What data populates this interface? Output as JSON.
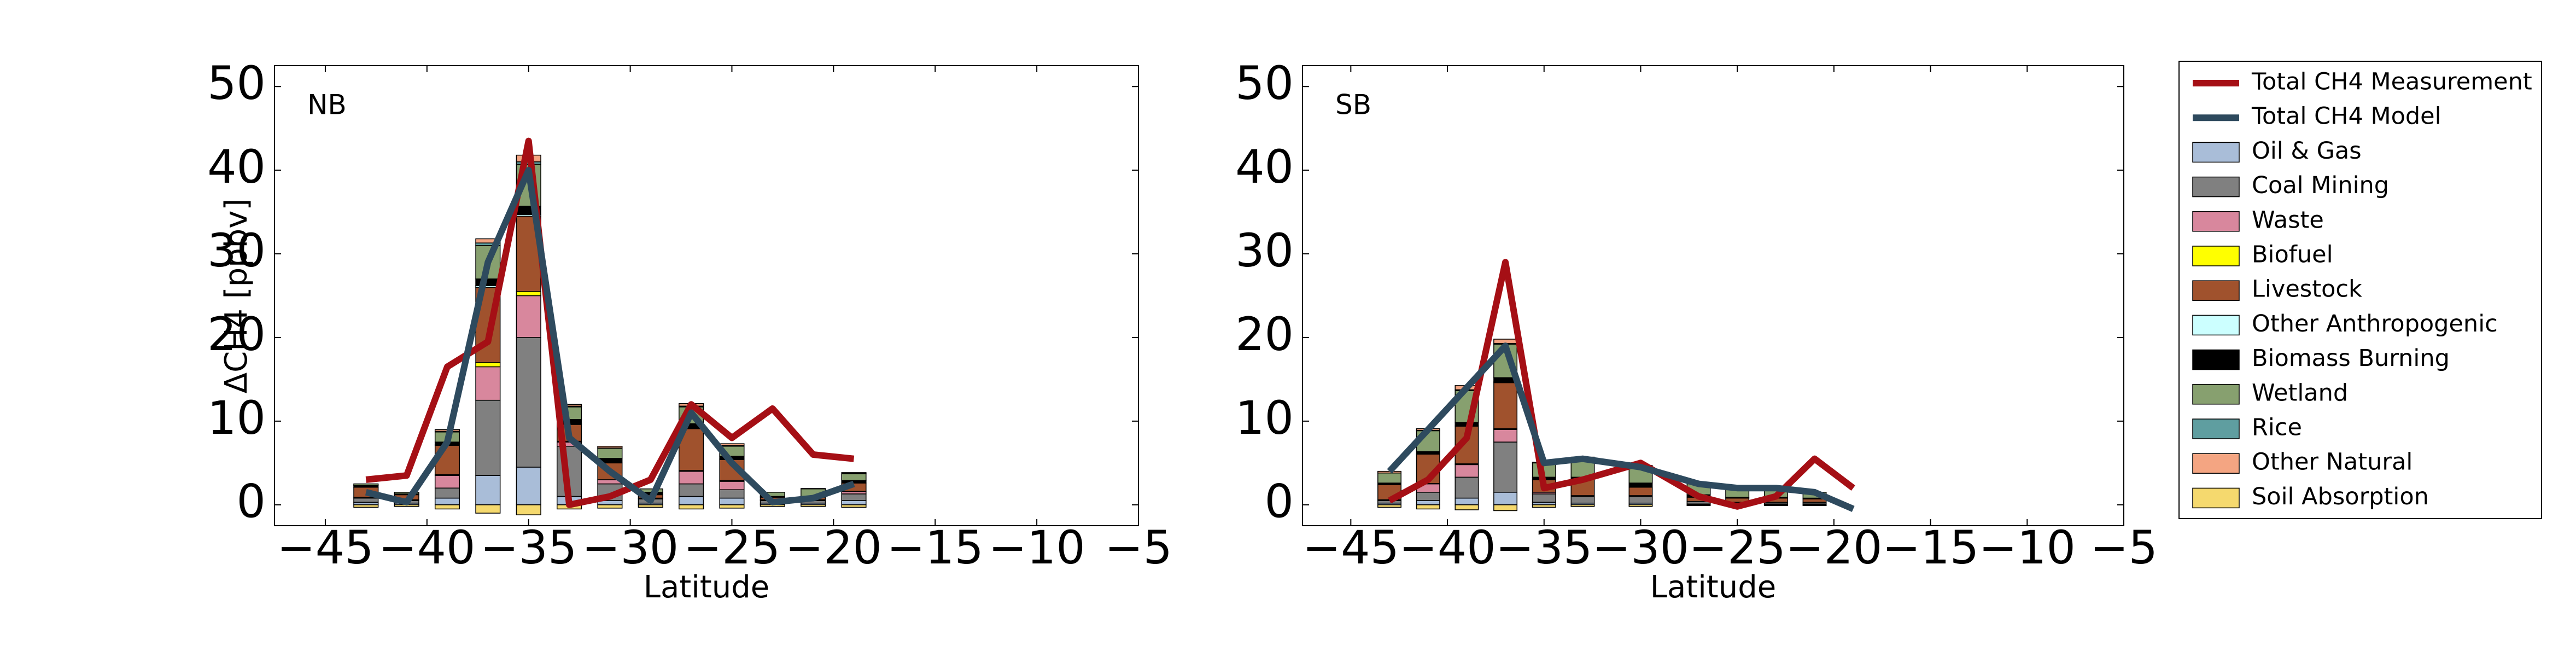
{
  "chart_data": [
    {
      "type": "bar",
      "annotation": "NB",
      "xlabel": "Latitude",
      "ylabel": "ΔCH4 [ppbv]",
      "legend": "outside right",
      "x": [
        -43,
        -41,
        -39,
        -37,
        -35,
        -33,
        -31,
        -29,
        -27,
        -25,
        -23,
        -21,
        -19
      ],
      "xlim": [
        -47.5,
        -5
      ],
      "xticks": [
        {
          "value": -45,
          "label": "−45"
        },
        {
          "value": -40,
          "label": "−40"
        },
        {
          "value": -35,
          "label": "−35"
        },
        {
          "value": -30,
          "label": "−30"
        },
        {
          "value": -25,
          "label": "−25"
        },
        {
          "value": -20,
          "label": "−20"
        },
        {
          "value": -15,
          "label": "−15"
        },
        {
          "value": -10,
          "label": "−10"
        },
        {
          "value": -5,
          "label": "−5"
        }
      ],
      "ylim": [
        -2.5,
        52.5
      ],
      "yticks": [
        0,
        10,
        20,
        30,
        40,
        50
      ],
      "series": [
        {
          "name": "Total CH4 Measurement",
          "color": "#a50f15",
          "type": "line",
          "x": [
            -43,
            -41,
            -39,
            -37,
            -35,
            -33,
            -31,
            -29,
            -27,
            -25,
            -23,
            -21,
            -19
          ],
          "values": [
            3,
            3.5,
            16.5,
            19.5,
            43.5,
            0,
            1,
            3,
            12,
            8,
            11.5,
            6,
            5.5
          ]
        },
        {
          "name": "Total CH4 Model",
          "color": "#2e4a5e",
          "type": "line",
          "x": [
            -43,
            -41,
            -39,
            -37,
            -35,
            -33,
            -31,
            -29,
            -27,
            -25,
            -23,
            -21,
            -19
          ],
          "values": [
            1.5,
            0.3,
            7.5,
            29,
            40,
            8,
            4,
            0.5,
            11,
            5,
            0.3,
            0.8,
            2.5
          ]
        },
        {
          "name": "Oil & Gas",
          "color": "#a9bdd8",
          "values": [
            0.3,
            0.2,
            0.8,
            3.5,
            4.5,
            1,
            0.5,
            0.2,
            1,
            0.8,
            0.2,
            0.2,
            0.5
          ]
        },
        {
          "name": "Coal Mining",
          "color": "#808080",
          "values": [
            0.5,
            0.3,
            1.2,
            9,
            15.5,
            6,
            2,
            0.5,
            1.5,
            1,
            0.3,
            0.3,
            0.8
          ]
        },
        {
          "name": "Waste",
          "color": "#d8879d",
          "values": [
            0.1,
            0.1,
            1.5,
            4,
            5,
            0.5,
            0.5,
            0.1,
            1.5,
            1,
            0.1,
            0.1,
            0.3
          ]
        },
        {
          "name": "Biofuel",
          "color": "#ffff00",
          "values": [
            0,
            0,
            0.1,
            0.5,
            0.5,
            0.1,
            0,
            0,
            0.1,
            0.1,
            0,
            0,
            0
          ]
        },
        {
          "name": "Livestock",
          "color": "#a0522d",
          "values": [
            1.2,
            0.6,
            3.5,
            9,
            9,
            2,
            2,
            0.4,
            5,
            2.5,
            0.3,
            0.3,
            1
          ]
        },
        {
          "name": "Other Anthropogenic",
          "color": "#ccffff",
          "values": [
            0,
            0,
            0.1,
            0.2,
            0.2,
            0.1,
            0.05,
            0,
            0.1,
            0.1,
            0,
            0,
            0
          ]
        },
        {
          "name": "Biomass Burning",
          "color": "#000000",
          "values": [
            0.2,
            0.1,
            0.3,
            0.8,
            1,
            0.5,
            0.5,
            0.3,
            0.5,
            0.3,
            0.1,
            0.1,
            0.3
          ]
        },
        {
          "name": "Wetland",
          "color": "#87a06f",
          "values": [
            0.2,
            0.2,
            1.2,
            4,
            5,
            1.5,
            1.2,
            0.4,
            2,
            1.2,
            0.5,
            0.9,
            0.8
          ]
        },
        {
          "name": "Rice",
          "color": "#5f9ea0",
          "values": [
            0,
            0,
            0.1,
            0.3,
            0.3,
            0.1,
            0.05,
            0,
            0.1,
            0.1,
            0,
            0,
            0.05
          ]
        },
        {
          "name": "Other Natural",
          "color": "#f4a582",
          "values": [
            0,
            0,
            0.2,
            0.5,
            0.8,
            0.2,
            0.2,
            0,
            0.3,
            0.2,
            0,
            0.05,
            0.1
          ]
        },
        {
          "name": "Soil Absorption",
          "color": "#f5d96e",
          "values": [
            -0.3,
            -0.2,
            -0.5,
            -1,
            -1.2,
            -0.5,
            -0.4,
            -0.3,
            -0.5,
            -0.4,
            -0.2,
            -0.2,
            -0.3
          ]
        }
      ]
    },
    {
      "type": "bar",
      "annotation": "SB",
      "xlabel": "Latitude",
      "x": [
        -43,
        -41,
        -39,
        -37,
        -35,
        -33,
        -30,
        -27,
        -25,
        -23,
        -21
      ],
      "xlim": [
        -47.5,
        -5
      ],
      "xticks": [
        {
          "value": -45,
          "label": "−45"
        },
        {
          "value": -40,
          "label": "−40"
        },
        {
          "value": -35,
          "label": "−35"
        },
        {
          "value": -30,
          "label": "−30"
        },
        {
          "value": -25,
          "label": "−25"
        },
        {
          "value": -20,
          "label": "−20"
        },
        {
          "value": -15,
          "label": "−15"
        },
        {
          "value": -10,
          "label": "−10"
        },
        {
          "value": -5,
          "label": "−5"
        }
      ],
      "ylim": [
        -2.5,
        52.5
      ],
      "yticks": [
        0,
        10,
        20,
        30,
        40,
        50
      ],
      "series": [
        {
          "type": "line",
          "x": [
            -43,
            -41,
            -39,
            -37,
            -35,
            -33,
            -30,
            -27,
            -25,
            -23,
            -21,
            -19
          ],
          "values": [
            0.5,
            3,
            8,
            29,
            2,
            3,
            5,
            1,
            -0.2,
            1,
            5.5,
            2
          ]
        },
        {
          "type": "line",
          "x": [
            -43,
            -41,
            -39,
            -37,
            -35,
            -33,
            -30,
            -27,
            -25,
            -23,
            -21,
            -19
          ],
          "values": [
            4,
            9,
            14,
            19,
            5,
            5.5,
            4.5,
            2.5,
            2,
            2,
            1.5,
            -0.5
          ]
        },
        {
          "values": [
            0.2,
            0.5,
            0.8,
            1.5,
            0.3,
            0.2,
            0.2,
            0.1,
            0.1,
            0.1,
            0.1
          ]
        },
        {
          "values": [
            0.3,
            1,
            2.5,
            6,
            1,
            0.8,
            0.8,
            0.3,
            0.2,
            0.2,
            0.2
          ]
        },
        {
          "values": [
            0.1,
            1,
            1.5,
            1.5,
            0.2,
            0.1,
            0.1,
            0,
            0,
            0,
            0
          ]
        },
        {
          "values": [
            0,
            0.05,
            0.1,
            0.1,
            0,
            0,
            0,
            0,
            0,
            0,
            0
          ]
        },
        {
          "values": [
            1.8,
            3.5,
            4.5,
            5.5,
            1.5,
            2,
            1,
            0.5,
            0.5,
            0.5,
            0.4
          ]
        },
        {
          "values": [
            0,
            0,
            0.05,
            0.1,
            0,
            0,
            0,
            0,
            0,
            0,
            0
          ]
        },
        {
          "values": [
            0.2,
            0.3,
            0.4,
            0.5,
            0.3,
            0.2,
            0.5,
            0.3,
            0.1,
            0.1,
            0.1
          ]
        },
        {
          "values": [
            1.2,
            2.5,
            3.8,
            4,
            1.7,
            2.3,
            2,
            1.3,
            1.1,
            1.1,
            0.7
          ]
        },
        {
          "values": [
            0,
            0.05,
            0.1,
            0.1,
            0,
            0,
            0,
            0,
            0,
            0,
            0
          ]
        },
        {
          "values": [
            0.2,
            0.2,
            0.5,
            0.5,
            0.1,
            0.1,
            0.1,
            0,
            0,
            0,
            0
          ]
        },
        {
          "values": [
            -0.3,
            -0.5,
            -0.6,
            -0.7,
            -0.3,
            -0.2,
            -0.2,
            -0.1,
            -0.1,
            -0.1,
            -0.1
          ]
        }
      ]
    }
  ]
}
